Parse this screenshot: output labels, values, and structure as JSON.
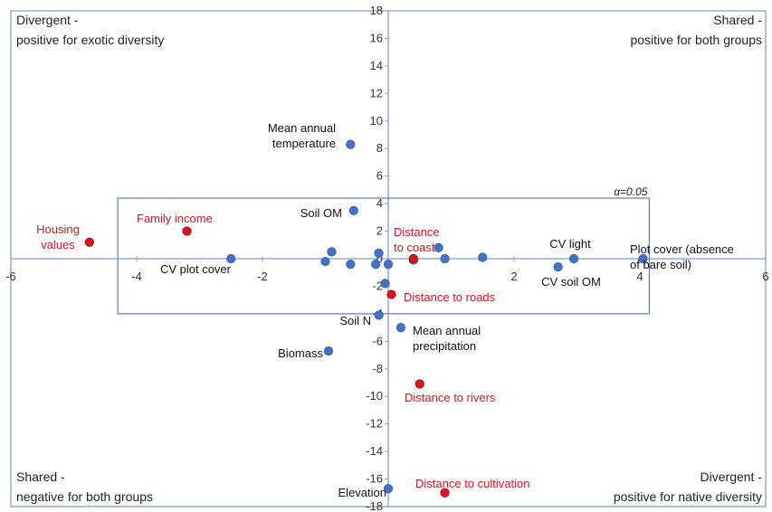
{
  "chart_data": {
    "type": "scatter",
    "xlim": [
      -6,
      6
    ],
    "ylim": [
      -18,
      18
    ],
    "x_ticks": [
      "-6",
      "-4",
      "-2",
      "0",
      "2",
      "4",
      "6"
    ],
    "y_ticks": [
      "18",
      "16",
      "14",
      "12",
      "10",
      "8",
      "6",
      "4",
      "2",
      "0",
      "-2",
      "-4",
      "-6",
      "-8",
      "-10",
      "-12",
      "-14",
      "-16",
      "-18"
    ],
    "grid": false,
    "quadrant_labels": {
      "top_left": [
        "Divergent -",
        "positive for exotic diversity"
      ],
      "top_right": [
        "Shared -",
        "positive for both groups"
      ],
      "bottom_left": [
        "Shared -",
        "negative for both groups"
      ],
      "bottom_right": [
        "Divergent -",
        "positive for native diversity"
      ]
    },
    "significance_box": {
      "label": "α=0.05",
      "x": [
        -4.3,
        4.15
      ],
      "y": [
        -4.0,
        4.4
      ]
    },
    "colors": {
      "blue_point": "#4472C4",
      "red_point": "#E0101E",
      "red_text": "#E0101E",
      "axis": "#7F9ED0"
    },
    "labels": [
      {
        "text": [
          "Mean annual",
          "temperature"
        ],
        "color": "black"
      },
      {
        "text": [
          "Soil OM"
        ],
        "color": "black"
      },
      {
        "text": [
          "Housing",
          "values"
        ],
        "color": "red"
      },
      {
        "text": [
          "Family income"
        ],
        "color": "red"
      },
      {
        "text": [
          "CV plot cover"
        ],
        "color": "black"
      },
      {
        "text": [
          "Distance",
          "to coast"
        ],
        "color": "red"
      },
      {
        "text": [
          "CV light"
        ],
        "color": "black"
      },
      {
        "text": [
          "Plot cover (absence",
          "of bare soil)"
        ],
        "color": "black"
      },
      {
        "text": [
          "CV soil OM"
        ],
        "color": "black"
      },
      {
        "text": [
          "Distance to roads"
        ],
        "color": "red"
      },
      {
        "text": [
          "Soil N"
        ],
        "color": "black"
      },
      {
        "text": [
          "Mean annual",
          "precipitation"
        ],
        "color": "black"
      },
      {
        "text": [
          "Biomass"
        ],
        "color": "black"
      },
      {
        "text": [
          "Distance to rivers"
        ],
        "color": "red"
      },
      {
        "text": [
          "Elevation"
        ],
        "color": "black"
      },
      {
        "text": [
          "Distance to cultivation"
        ],
        "color": "red"
      }
    ],
    "points": [
      {
        "x": -0.6,
        "y": 8.3,
        "color": "blue"
      },
      {
        "x": -0.55,
        "y": 3.5,
        "color": "blue"
      },
      {
        "x": -4.75,
        "y": 1.2,
        "color": "red"
      },
      {
        "x": -3.2,
        "y": 2.0,
        "color": "red"
      },
      {
        "x": -2.5,
        "y": 0.0,
        "color": "blue"
      },
      {
        "x": -0.9,
        "y": 0.5,
        "color": "blue"
      },
      {
        "x": -1.0,
        "y": -0.2,
        "color": "blue"
      },
      {
        "x": -0.6,
        "y": -0.4,
        "color": "blue"
      },
      {
        "x": -0.15,
        "y": 0.4,
        "color": "blue"
      },
      {
        "x": -0.2,
        "y": -0.4,
        "color": "blue"
      },
      {
        "x": 0.0,
        "y": -0.4,
        "color": "blue"
      },
      {
        "x": 0.4,
        "y": -0.1,
        "color": "blue"
      },
      {
        "x": 0.4,
        "y": 0.0,
        "color": "red"
      },
      {
        "x": 0.8,
        "y": 0.8,
        "color": "blue"
      },
      {
        "x": 0.9,
        "y": 0.0,
        "color": "blue"
      },
      {
        "x": 1.5,
        "y": 0.1,
        "color": "blue"
      },
      {
        "x": 2.95,
        "y": 0.0,
        "color": "blue"
      },
      {
        "x": 4.05,
        "y": 0.0,
        "color": "blue"
      },
      {
        "x": 2.7,
        "y": -0.6,
        "color": "blue"
      },
      {
        "x": -0.05,
        "y": -1.8,
        "color": "blue"
      },
      {
        "x": 0.05,
        "y": -2.6,
        "color": "red"
      },
      {
        "x": -0.15,
        "y": -4.1,
        "color": "blue"
      },
      {
        "x": 0.2,
        "y": -5.0,
        "color": "blue"
      },
      {
        "x": -0.95,
        "y": -6.7,
        "color": "blue"
      },
      {
        "x": 0.5,
        "y": -9.1,
        "color": "red"
      },
      {
        "x": 0.0,
        "y": -16.7,
        "color": "blue"
      },
      {
        "x": 0.9,
        "y": -17.0,
        "color": "red"
      }
    ]
  }
}
